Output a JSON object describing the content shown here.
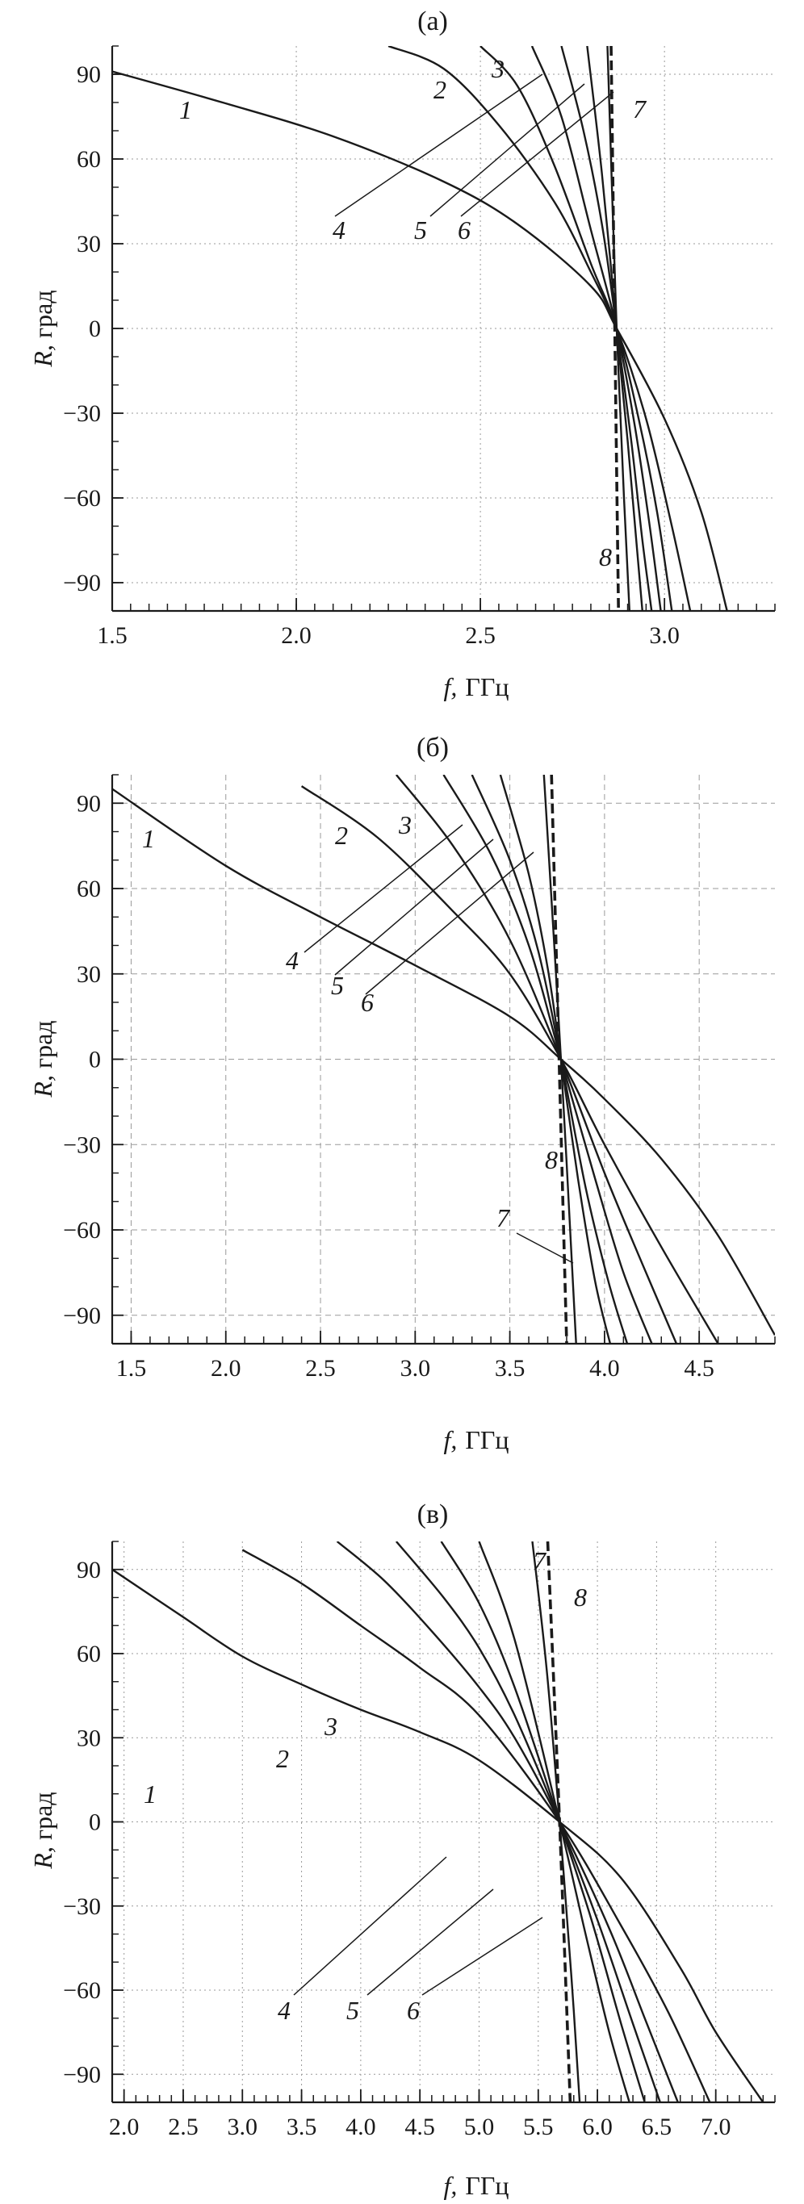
{
  "chart_data": [
    {
      "type": "line",
      "title": "(а)",
      "xlabel_var": "f,",
      "xlabel_unit": "ГГц",
      "ylabel_var": "R,",
      "ylabel_unit": "град",
      "xlim": [
        1.5,
        3.3
      ],
      "ylim": [
        -100,
        100
      ],
      "xticks": [
        "1.5",
        "2.0",
        "2.5",
        "3.0"
      ],
      "yticks": [
        "90",
        "60",
        "30",
        "0",
        "−30",
        "−60",
        "−90"
      ],
      "grid": "dotted",
      "series": [
        {
          "name": "1",
          "x": [
            1.5,
            1.8,
            2.1,
            2.4,
            2.6,
            2.8,
            2.87,
            3.0,
            3.1,
            3.17
          ],
          "y": [
            91,
            80,
            68,
            52,
            37,
            15,
            0,
            -32,
            -65,
            -100
          ]
        },
        {
          "name": "2",
          "x": [
            2.25,
            2.4,
            2.55,
            2.7,
            2.8,
            2.87,
            2.95,
            3.02,
            3.07
          ],
          "y": [
            100,
            92,
            72,
            45,
            20,
            0,
            -32,
            -70,
            -100
          ]
        },
        {
          "name": "3",
          "x": [
            2.5,
            2.6,
            2.7,
            2.8,
            2.87,
            2.93,
            2.98,
            3.02
          ],
          "y": [
            100,
            86,
            58,
            23,
            0,
            -32,
            -65,
            -100
          ]
        },
        {
          "name": "4",
          "x": [
            2.64,
            2.72,
            2.8,
            2.87,
            2.92,
            2.96,
            2.99
          ],
          "y": [
            100,
            75,
            35,
            0,
            -35,
            -70,
            -100
          ]
        },
        {
          "name": "5",
          "x": [
            2.72,
            2.78,
            2.83,
            2.87,
            2.91,
            2.94,
            2.965
          ],
          "y": [
            100,
            70,
            37,
            0,
            -40,
            -75,
            -100
          ]
        },
        {
          "name": "6",
          "x": [
            2.79,
            2.83,
            2.87,
            2.9,
            2.92,
            2.94
          ],
          "y": [
            100,
            55,
            0,
            -40,
            -70,
            -100
          ]
        },
        {
          "name": "7",
          "x": [
            2.845,
            2.87,
            2.89,
            2.905
          ],
          "y": [
            100,
            0,
            -60,
            -100
          ]
        },
        {
          "name": "8",
          "x": [
            2.855,
            2.865,
            2.875
          ],
          "y": [
            100,
            0,
            -100
          ],
          "dashed": true
        }
      ]
    },
    {
      "type": "line",
      "title": "(б)",
      "xlabel_var": "f,",
      "xlabel_unit": "ГГц",
      "ylabel_var": "R,",
      "ylabel_unit": "град",
      "xlim": [
        1.4,
        4.9
      ],
      "ylim": [
        -100,
        100
      ],
      "xticks": [
        "1.5",
        "2.0",
        "2.5",
        "3.0",
        "3.5",
        "4.0",
        "4.5"
      ],
      "yticks": [
        "90",
        "60",
        "30",
        "0",
        "−30",
        "−60",
        "−90"
      ],
      "grid": "dashed",
      "series": [
        {
          "name": "1",
          "x": [
            1.4,
            2.0,
            2.5,
            3.0,
            3.5,
            3.77,
            4.0,
            4.3,
            4.6,
            4.9
          ],
          "y": [
            95,
            68,
            50,
            33,
            15,
            0,
            -14,
            -35,
            -62,
            -97
          ]
        },
        {
          "name": "2",
          "x": [
            2.4,
            2.8,
            3.2,
            3.5,
            3.77,
            4.0,
            4.3,
            4.6
          ],
          "y": [
            96,
            78,
            52,
            30,
            0,
            -30,
            -66,
            -100
          ]
        },
        {
          "name": "3",
          "x": [
            2.9,
            3.2,
            3.5,
            3.77,
            4.0,
            4.2,
            4.38
          ],
          "y": [
            100,
            75,
            42,
            0,
            -40,
            -72,
            -100
          ]
        },
        {
          "name": "4",
          "x": [
            3.15,
            3.4,
            3.6,
            3.77,
            3.95,
            4.1,
            4.25
          ],
          "y": [
            100,
            72,
            40,
            0,
            -42,
            -75,
            -100
          ]
        },
        {
          "name": "5",
          "x": [
            3.3,
            3.5,
            3.65,
            3.77,
            3.9,
            4.02,
            4.12
          ],
          "y": [
            100,
            70,
            38,
            0,
            -45,
            -78,
            -100
          ]
        },
        {
          "name": "6",
          "x": [
            3.45,
            3.6,
            3.7,
            3.77,
            3.86,
            3.95,
            4.03
          ],
          "y": [
            100,
            65,
            32,
            0,
            -42,
            -78,
            -100
          ]
        },
        {
          "name": "7",
          "x": [
            3.68,
            3.77,
            3.85
          ],
          "y": [
            100,
            0,
            -100
          ]
        },
        {
          "name": "8",
          "x": [
            3.72,
            3.76,
            3.8
          ],
          "y": [
            100,
            0,
            -100
          ],
          "dashed": true
        }
      ]
    },
    {
      "type": "line",
      "title": "(в)",
      "xlabel_var": "f,",
      "xlabel_unit": "ГГц",
      "ylabel_var": "R,",
      "ylabel_unit": "град",
      "xlim": [
        1.9,
        7.5
      ],
      "ylim": [
        -100,
        100
      ],
      "xticks": [
        "2.0",
        "2.5",
        "3.0",
        "3.5",
        "4.0",
        "4.5",
        "5.0",
        "5.5",
        "6.0",
        "6.5",
        "7.0"
      ],
      "yticks": [
        "90",
        "60",
        "30",
        "0",
        "−30",
        "−60",
        "−90"
      ],
      "grid": "dotted",
      "series": [
        {
          "name": "1",
          "x": [
            1.9,
            2.5,
            3.0,
            3.5,
            4.0,
            4.5,
            5.0,
            5.68,
            6.2,
            6.7,
            7.0,
            7.4
          ],
          "y": [
            90,
            73,
            59,
            49,
            40,
            32,
            22,
            0,
            -20,
            -52,
            -75,
            -100
          ]
        },
        {
          "name": "2",
          "x": [
            3.0,
            3.5,
            4.0,
            4.5,
            5.0,
            5.68,
            6.2,
            6.6,
            6.95
          ],
          "y": [
            97,
            85,
            70,
            55,
            38,
            0,
            -37,
            -68,
            -100
          ]
        },
        {
          "name": "3",
          "x": [
            3.8,
            4.2,
            4.6,
            5.0,
            5.3,
            5.68,
            6.1,
            6.4,
            6.68
          ],
          "y": [
            100,
            86,
            68,
            48,
            30,
            0,
            -38,
            -70,
            -100
          ]
        },
        {
          "name": "4",
          "x": [
            4.3,
            4.7,
            5.0,
            5.3,
            5.68,
            6.0,
            6.3,
            6.53
          ],
          "y": [
            100,
            80,
            62,
            38,
            0,
            -35,
            -72,
            -100
          ]
        },
        {
          "name": "5",
          "x": [
            4.68,
            5.0,
            5.3,
            5.68,
            5.95,
            6.2,
            6.4
          ],
          "y": [
            100,
            78,
            48,
            0,
            -35,
            -72,
            -100
          ]
        },
        {
          "name": "6",
          "x": [
            5.0,
            5.3,
            5.68,
            5.9,
            6.1,
            6.27
          ],
          "y": [
            100,
            65,
            0,
            -40,
            -75,
            -100
          ]
        },
        {
          "name": "7",
          "x": [
            5.45,
            5.57,
            5.68,
            5.78,
            5.85
          ],
          "y": [
            100,
            55,
            0,
            -55,
            -100
          ]
        },
        {
          "name": "8",
          "x": [
            5.58,
            5.68,
            5.77
          ],
          "y": [
            100,
            0,
            -100
          ],
          "dashed": true
        }
      ]
    }
  ]
}
